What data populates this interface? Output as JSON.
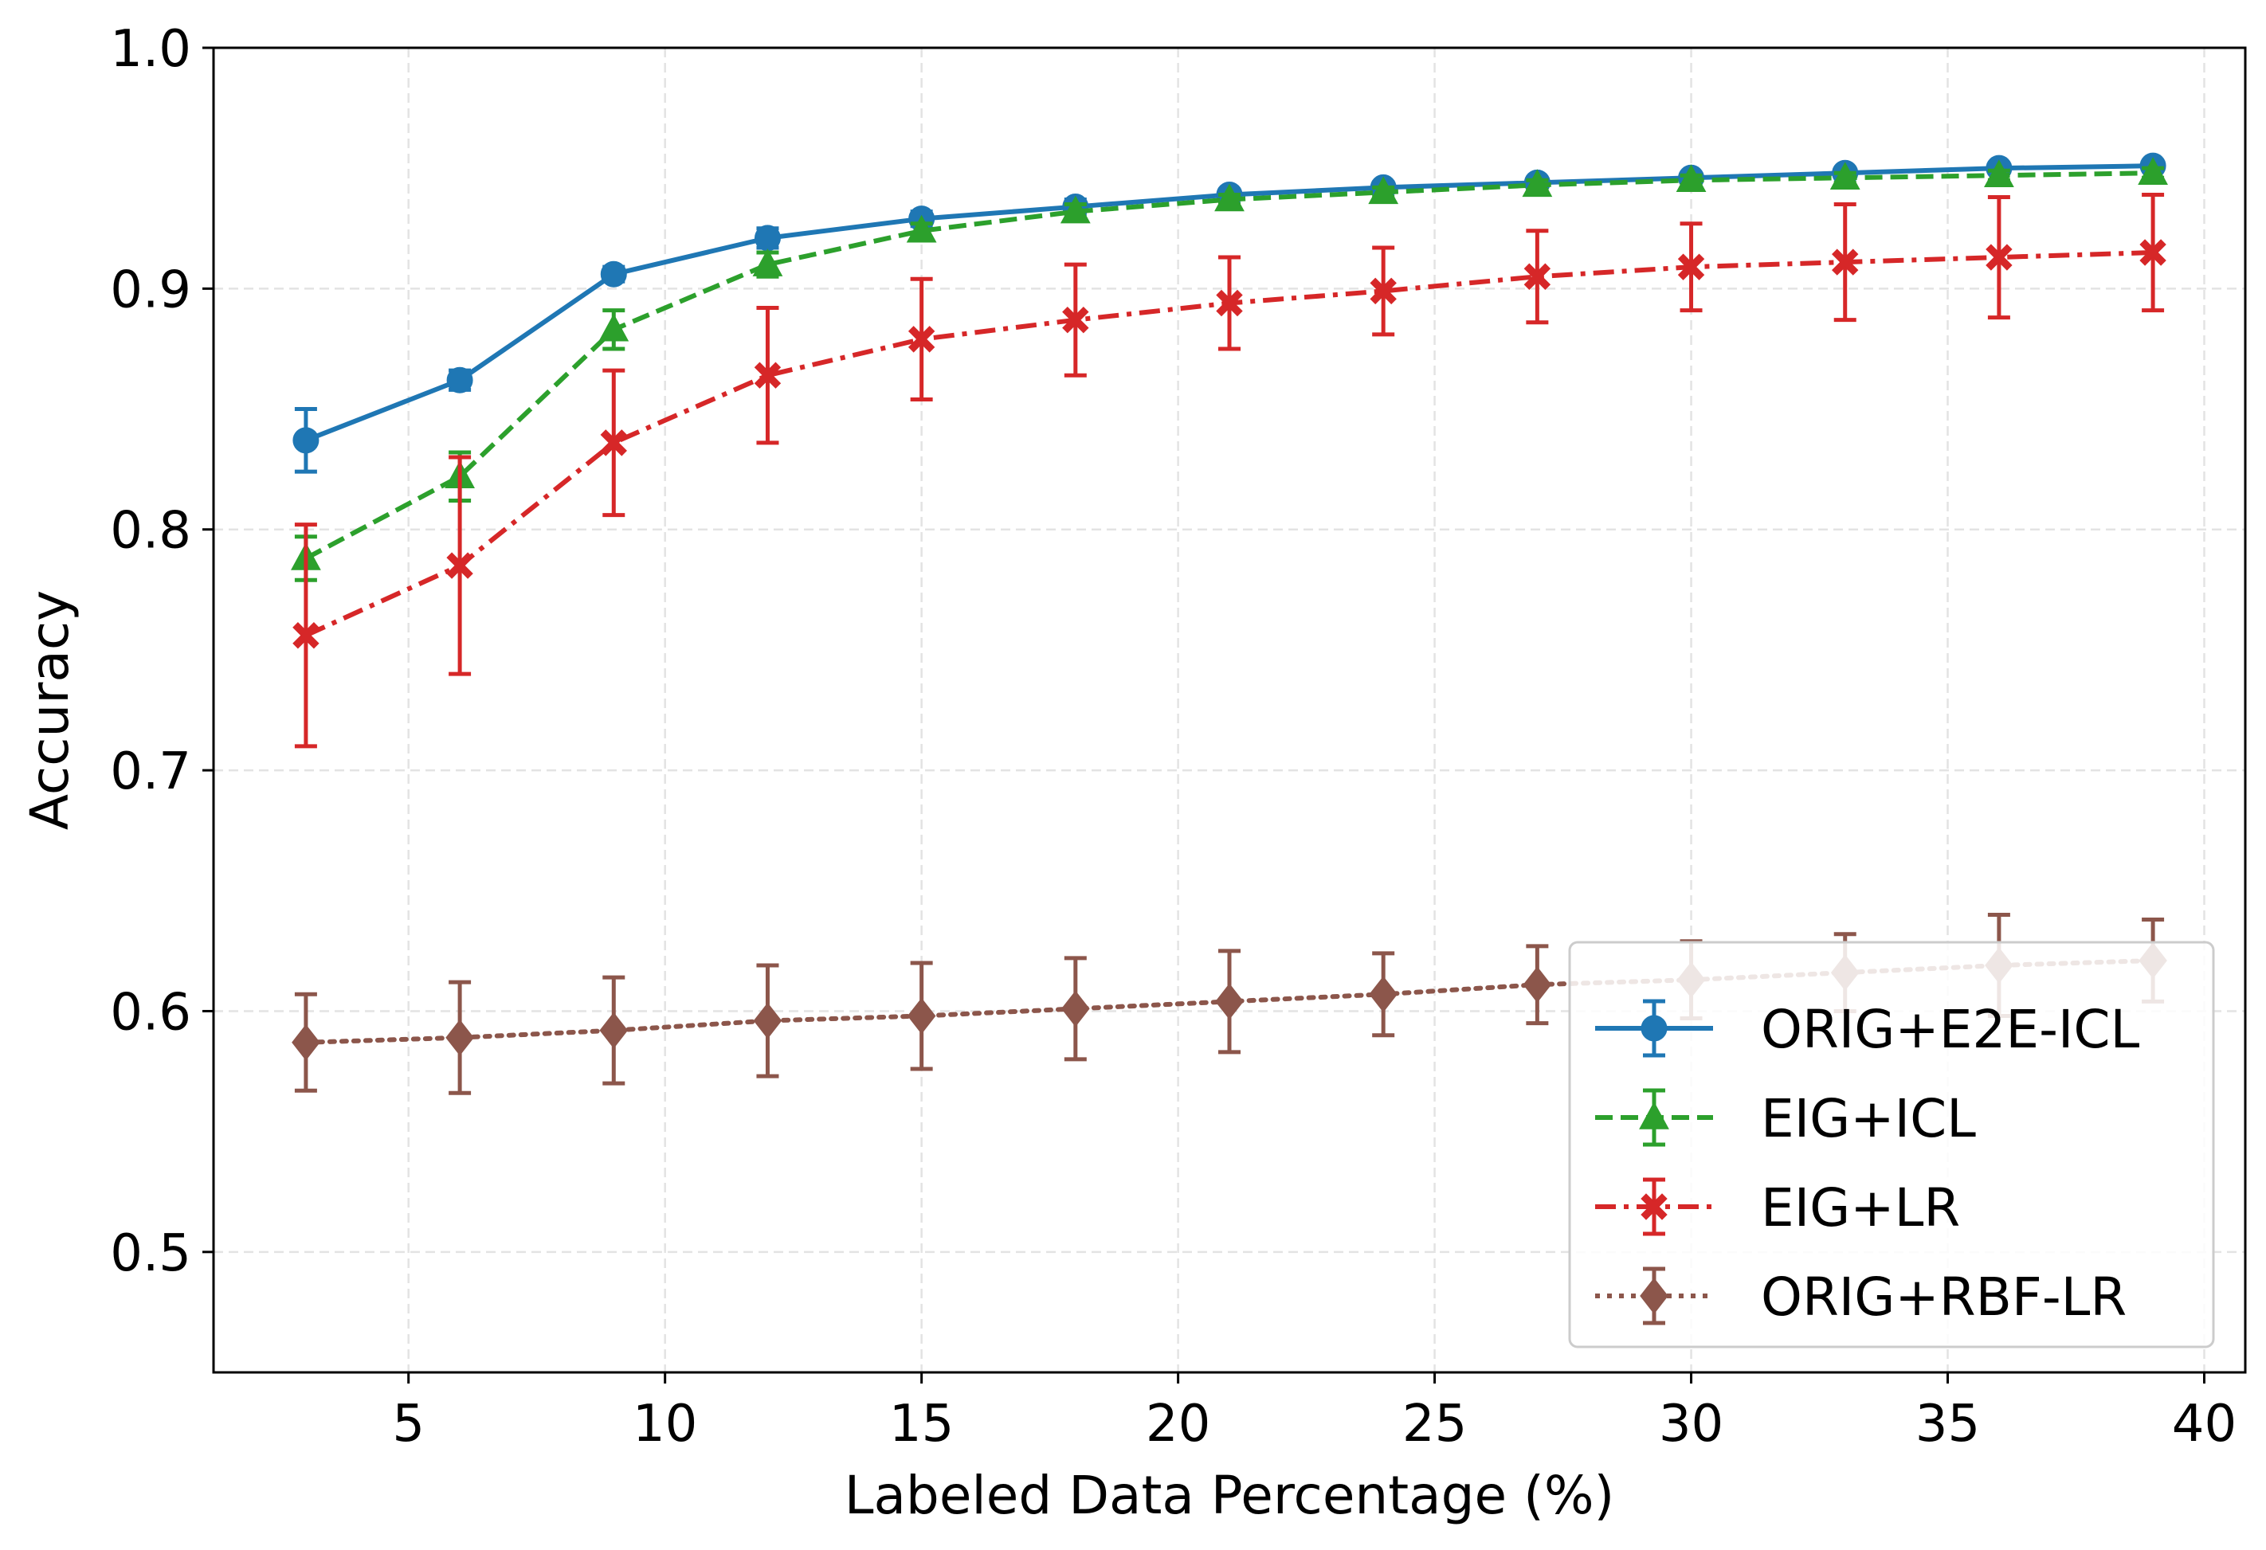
{
  "chart_data": {
    "type": "line",
    "title": "",
    "xlabel": "Labeled Data Percentage (%)",
    "ylabel": "Accuracy",
    "xlim": [
      1.2,
      40.8
    ],
    "ylim": [
      0.45,
      1.0
    ],
    "xticks": [
      5,
      10,
      15,
      20,
      25,
      30,
      35,
      40
    ],
    "yticks": [
      0.5,
      0.6,
      0.7,
      0.8,
      0.9,
      1.0
    ],
    "xtick_labels": [
      "5",
      "10",
      "15",
      "20",
      "25",
      "30",
      "35",
      "40"
    ],
    "ytick_labels": [
      "0.5",
      "0.6",
      "0.7",
      "0.8",
      "0.9",
      "1.0"
    ],
    "grid": true,
    "legend_position": "lower-right",
    "x": [
      3,
      6,
      9,
      12,
      15,
      18,
      21,
      24,
      27,
      30,
      33,
      36,
      39
    ],
    "series": [
      {
        "name": "ORIG+E2E-ICL",
        "color": "#1f77b4",
        "linestyle": "solid",
        "marker": "circle",
        "values": [
          0.837,
          0.862,
          0.906,
          0.921,
          0.929,
          0.934,
          0.939,
          0.942,
          0.944,
          0.946,
          0.948,
          0.95,
          0.951
        ],
        "errors": [
          0.013,
          0.004,
          0.003,
          0.004,
          0.003,
          0.003,
          0.002,
          0.002,
          0.002,
          0.002,
          0.002,
          0.002,
          0.002
        ]
      },
      {
        "name": "EIG+ICL",
        "color": "#2ca02c",
        "linestyle": "dashed",
        "marker": "triangle",
        "values": [
          0.788,
          0.822,
          0.883,
          0.91,
          0.924,
          0.932,
          0.937,
          0.94,
          0.943,
          0.945,
          0.946,
          0.947,
          0.948
        ],
        "errors": [
          0.009,
          0.01,
          0.008,
          0.005,
          0.003,
          0.003,
          0.002,
          0.002,
          0.002,
          0.002,
          0.002,
          0.002,
          0.002
        ]
      },
      {
        "name": "EIG+LR",
        "color": "#d62728",
        "linestyle": "dashdot",
        "marker": "x-filled",
        "values": [
          0.756,
          0.785,
          0.836,
          0.864,
          0.879,
          0.887,
          0.894,
          0.899,
          0.905,
          0.909,
          0.911,
          0.913,
          0.915
        ],
        "errors": [
          0.046,
          0.045,
          0.03,
          0.028,
          0.025,
          0.023,
          0.019,
          0.018,
          0.019,
          0.018,
          0.024,
          0.025,
          0.024
        ]
      },
      {
        "name": "ORIG+RBF-LR",
        "color": "#8c564b",
        "linestyle": "dotted",
        "marker": "diamond",
        "values": [
          0.587,
          0.589,
          0.592,
          0.596,
          0.598,
          0.601,
          0.604,
          0.607,
          0.611,
          0.613,
          0.616,
          0.619,
          0.621
        ],
        "errors": [
          0.02,
          0.023,
          0.022,
          0.023,
          0.022,
          0.021,
          0.021,
          0.017,
          0.016,
          0.016,
          0.016,
          0.021,
          0.017
        ]
      }
    ]
  }
}
